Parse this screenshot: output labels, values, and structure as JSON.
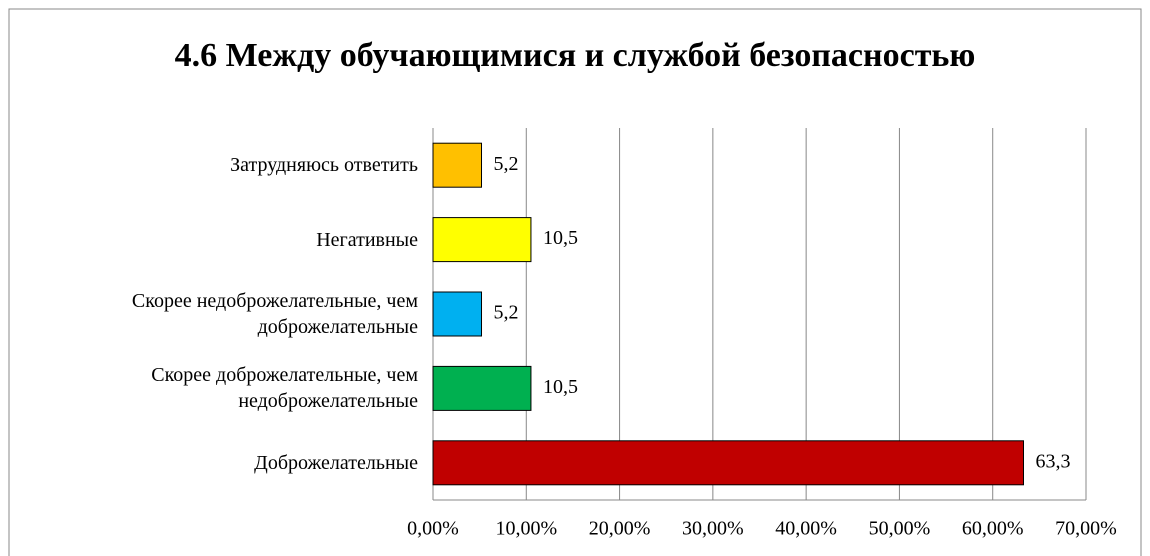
{
  "chart_data": {
    "type": "bar",
    "orientation": "horizontal",
    "title": "4.6 Между обучающимися и службой безопасностью",
    "categories": [
      "Затрудняюсь ответить",
      "Негативные",
      "Скорее недоброжелательные, чем доброжелательные",
      "Скорее доброжелательные, чем недоброжелательные",
      "Доброжелательные"
    ],
    "values": [
      5.2,
      10.5,
      5.2,
      10.5,
      63.3
    ],
    "value_labels": [
      "5,2",
      "10,5",
      "5,2",
      "10,5",
      "63,3"
    ],
    "colors": [
      "#ffc000",
      "#ffff00",
      "#00b0f0",
      "#00b050",
      "#c00000"
    ],
    "xlim": [
      0,
      70
    ],
    "xticks": [
      {
        "value": 0,
        "label": "0,00%"
      },
      {
        "value": 10,
        "label": "10,00%"
      },
      {
        "value": 20,
        "label": "20,00%"
      },
      {
        "value": 30,
        "label": "30,00%"
      },
      {
        "value": 40,
        "label": "40,00%"
      },
      {
        "value": 50,
        "label": "50,00%"
      },
      {
        "value": 60,
        "label": "60,00%"
      },
      {
        "value": 70,
        "label": "70,00%"
      }
    ],
    "grid": true
  }
}
